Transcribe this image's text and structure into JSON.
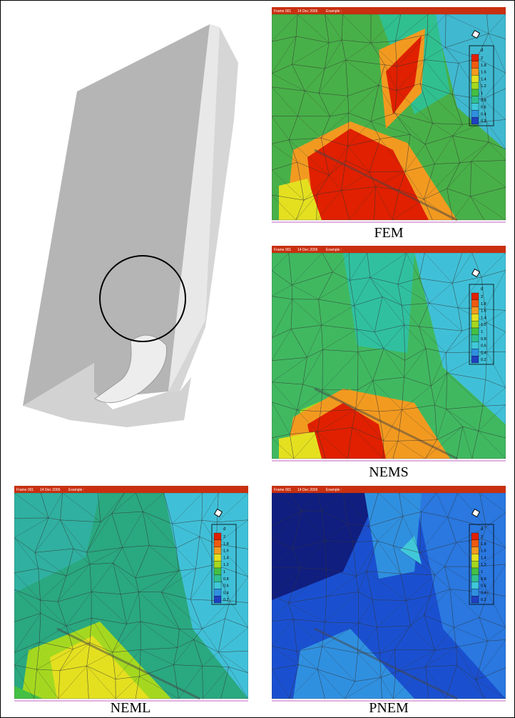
{
  "header": {
    "frame": "Frame 001",
    "date": "14 Dec 2006",
    "label": "Example :"
  },
  "legend": {
    "title": "d",
    "levels": [
      2,
      1.8,
      1.6,
      1.4,
      1.2,
      1,
      0.8,
      0.6,
      0.4,
      0.2
    ],
    "colors": [
      "#e02000",
      "#f05a10",
      "#f29a20",
      "#e4e020",
      "#a4d820",
      "#44c044",
      "#30c090",
      "#40c8d8",
      "#3090e0",
      "#2040c0"
    ]
  },
  "panels": [
    {
      "caption": "FEM"
    },
    {
      "caption": "NEMS"
    },
    {
      "caption": "NEML"
    },
    {
      "caption": "PNEM"
    }
  ]
}
